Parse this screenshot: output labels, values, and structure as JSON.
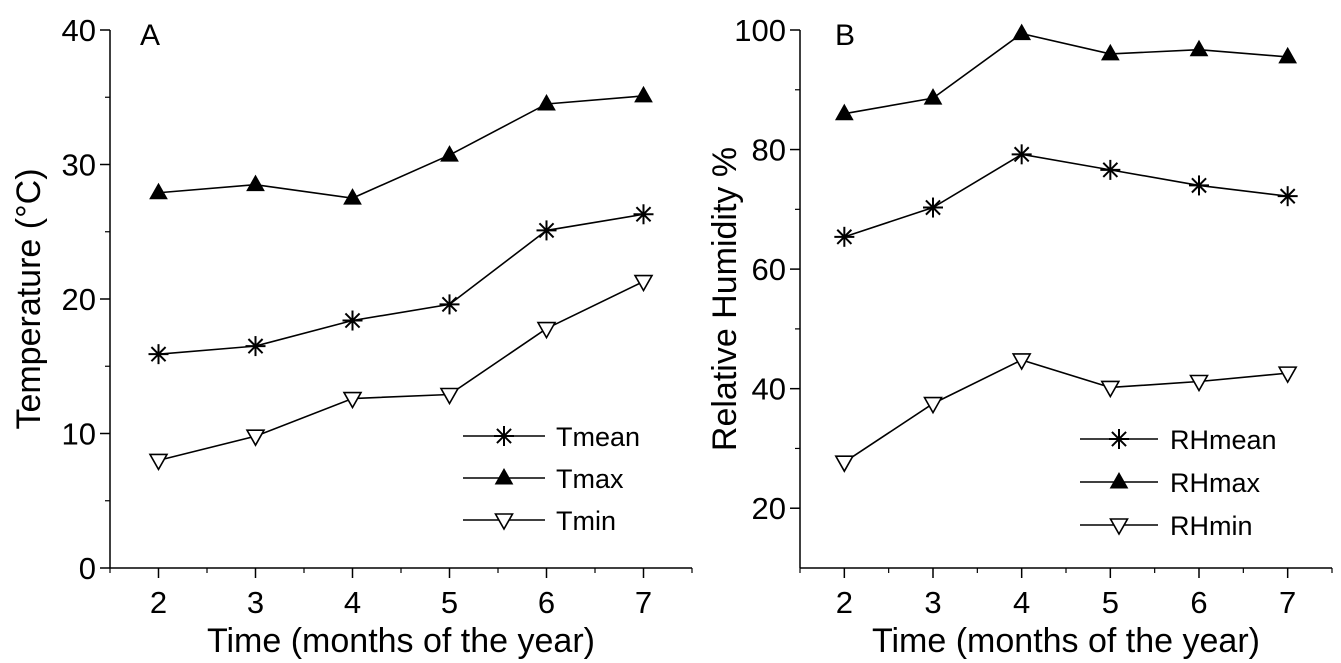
{
  "chart_data": [
    {
      "type": "line",
      "panel_label": "A",
      "xlabel": "Time (months of the year)",
      "ylabel": "Temperature  (°C)",
      "x": [
        2,
        3,
        4,
        5,
        6,
        7
      ],
      "xlim": [
        1.5,
        7.5
      ],
      "ylim": [
        0,
        40
      ],
      "xticks": [
        2,
        3,
        4,
        5,
        6,
        7
      ],
      "yticks": [
        0,
        10,
        20,
        30,
        40
      ],
      "legend_position": "bottom-right",
      "series": [
        {
          "name": "Tmean",
          "marker": "asterisk",
          "values": [
            15.9,
            16.5,
            18.4,
            19.6,
            25.1,
            26.3
          ]
        },
        {
          "name": "Tmax",
          "marker": "filled-triangle",
          "values": [
            27.9,
            28.5,
            27.5,
            30.7,
            34.5,
            35.1
          ]
        },
        {
          "name": "Tmin",
          "marker": "open-down-triangle",
          "values": [
            8.0,
            9.8,
            12.6,
            12.9,
            17.8,
            21.3
          ]
        }
      ]
    },
    {
      "type": "line",
      "panel_label": "B",
      "xlabel": "Time (months of the year)",
      "ylabel": "Relative Humidity  %",
      "x": [
        2,
        3,
        4,
        5,
        6,
        7
      ],
      "xlim": [
        1.5,
        7.5
      ],
      "ylim": [
        10,
        100
      ],
      "xticks": [
        2,
        3,
        4,
        5,
        6,
        7
      ],
      "yticks": [
        20,
        40,
        60,
        80,
        100
      ],
      "legend_position": "bottom-right",
      "series": [
        {
          "name": "RHmean",
          "marker": "asterisk",
          "values": [
            65.4,
            70.3,
            79.2,
            76.6,
            74.0,
            72.2
          ]
        },
        {
          "name": "RHmax",
          "marker": "filled-triangle",
          "values": [
            86.0,
            88.6,
            99.4,
            96.0,
            96.7,
            95.5
          ]
        },
        {
          "name": "RHmin",
          "marker": "open-down-triangle",
          "values": [
            27.7,
            37.5,
            44.8,
            40.2,
            41.2,
            42.6
          ]
        }
      ]
    }
  ]
}
